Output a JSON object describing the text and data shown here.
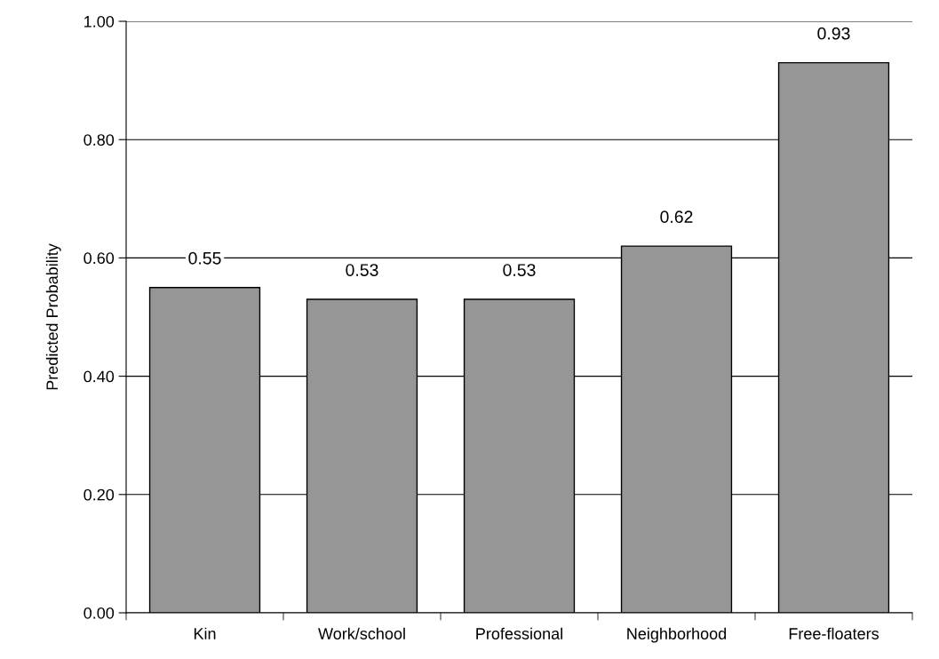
{
  "chart_data": {
    "type": "bar",
    "ylabel": "Predicted Probability",
    "categories": [
      "Kin",
      "Work/school",
      "Professional",
      "Neighborhood",
      "Free-floaters"
    ],
    "values": [
      0.55,
      0.53,
      0.53,
      0.62,
      0.93
    ],
    "color": "#969696",
    "ylim": [
      0,
      1
    ],
    "yticks": [
      {
        "value": 0,
        "label": "0.00"
      },
      {
        "value": 0.2,
        "label": "0.20"
      },
      {
        "value": 0.4,
        "label": "0.40"
      },
      {
        "value": 0.6,
        "label": "0.60"
      },
      {
        "value": 0.8,
        "label": "0.80"
      },
      {
        "value": 1,
        "label": "1.00"
      }
    ],
    "grid": "y",
    "data_labels": true
  }
}
